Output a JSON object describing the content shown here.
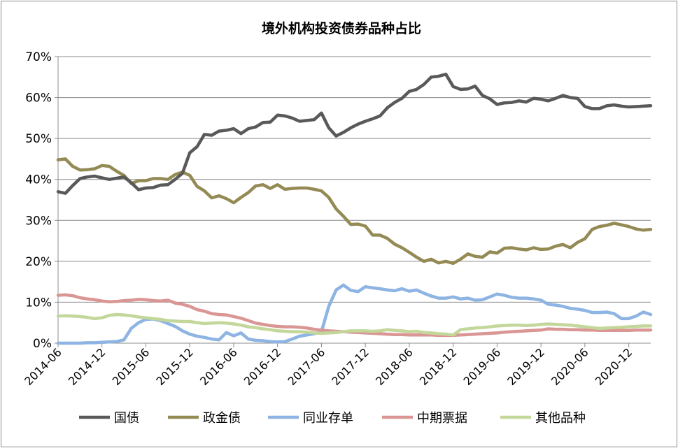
{
  "chart_data": {
    "type": "line",
    "title": "境外机构投资债券品种占比",
    "ylim": [
      0,
      70
    ],
    "yticks": [
      "0%",
      "10%",
      "20%",
      "30%",
      "40%",
      "50%",
      "60%",
      "70%"
    ],
    "xticks": [
      "2014-06",
      "2014-12",
      "2015-06",
      "2015-12",
      "2016-06",
      "2016-12",
      "2017-06",
      "2017-12",
      "2018-06",
      "2018-12",
      "2019-06",
      "2019-12",
      "2020-06",
      "2020-12"
    ],
    "x": [
      "2014-06",
      "2014-07",
      "2014-08",
      "2014-09",
      "2014-10",
      "2014-11",
      "2014-12",
      "2015-01",
      "2015-02",
      "2015-03",
      "2015-04",
      "2015-05",
      "2015-06",
      "2015-07",
      "2015-08",
      "2015-09",
      "2015-10",
      "2015-11",
      "2015-12",
      "2016-01",
      "2016-02",
      "2016-03",
      "2016-04",
      "2016-05",
      "2016-06",
      "2016-07",
      "2016-08",
      "2016-09",
      "2016-10",
      "2016-11",
      "2016-12",
      "2017-01",
      "2017-02",
      "2017-03",
      "2017-04",
      "2017-05",
      "2017-06",
      "2017-07",
      "2017-08",
      "2017-09",
      "2017-10",
      "2017-11",
      "2017-12",
      "2018-01",
      "2018-02",
      "2018-03",
      "2018-04",
      "2018-05",
      "2018-06",
      "2018-07",
      "2018-08",
      "2018-09",
      "2018-10",
      "2018-11",
      "2018-12",
      "2019-01",
      "2019-02",
      "2019-03",
      "2019-04",
      "2019-05",
      "2019-06",
      "2019-07",
      "2019-08",
      "2019-09",
      "2019-10",
      "2019-11",
      "2019-12",
      "2020-01",
      "2020-02",
      "2020-03",
      "2020-04",
      "2020-05",
      "2020-06",
      "2020-07",
      "2020-08",
      "2020-09",
      "2020-10",
      "2020-11",
      "2020-12",
      "2021-01",
      "2021-02",
      "2021-03"
    ],
    "legend_position": "bottom",
    "series": [
      {
        "name": "国债",
        "color": "#595959",
        "values": [
          37.0,
          36.6,
          38.5,
          40.2,
          40.6,
          40.8,
          40.4,
          40.0,
          40.3,
          40.6,
          39.2,
          37.5,
          37.9,
          38.0,
          38.6,
          38.7,
          40.0,
          41.5,
          46.5,
          48.0,
          51.0,
          50.8,
          51.8,
          52.0,
          52.4,
          51.2,
          52.4,
          52.8,
          53.9,
          54.0,
          55.7,
          55.5,
          55.0,
          54.2,
          54.4,
          54.6,
          56.2,
          52.6,
          50.6,
          51.5,
          52.6,
          53.5,
          54.2,
          54.8,
          55.5,
          57.5,
          58.8,
          59.8,
          61.5,
          62.0,
          63.2,
          65.0,
          65.2,
          65.7,
          62.7,
          62.0,
          62.1,
          62.8,
          60.5,
          59.7,
          58.3,
          58.7,
          58.8,
          59.2,
          58.9,
          59.8,
          59.6,
          59.2,
          59.8,
          60.5,
          60.0,
          59.8,
          57.8,
          57.3,
          57.3,
          58.0,
          58.2,
          57.9,
          57.7,
          57.8,
          57.9,
          58.0
        ]
      },
      {
        "name": "政金债",
        "color": "#948a54",
        "values": [
          44.8,
          45.0,
          43.2,
          42.3,
          42.4,
          42.6,
          43.4,
          43.2,
          42.0,
          41.0,
          39.0,
          39.7,
          39.7,
          40.2,
          40.2,
          40.0,
          41.2,
          41.8,
          41.0,
          38.3,
          37.2,
          35.5,
          36.0,
          35.3,
          34.3,
          35.6,
          36.8,
          38.4,
          38.7,
          37.8,
          38.7,
          37.6,
          37.8,
          37.9,
          37.9,
          37.6,
          37.2,
          35.6,
          32.8,
          31.0,
          29.0,
          29.1,
          28.6,
          26.4,
          26.4,
          25.6,
          24.2,
          23.3,
          22.2,
          21.0,
          20.0,
          20.5,
          19.6,
          20.0,
          19.5,
          20.5,
          21.8,
          21.2,
          21.0,
          22.3,
          22.0,
          23.2,
          23.3,
          23.0,
          22.8,
          23.3,
          22.9,
          23.0,
          23.7,
          24.1,
          23.3,
          24.6,
          25.5,
          27.8,
          28.5,
          28.8,
          29.3,
          28.9,
          28.5,
          27.9,
          27.6,
          27.8
        ]
      },
      {
        "name": "同业存单",
        "color": "#8db4e2",
        "values": [
          0,
          0,
          0,
          0,
          0.1,
          0.1,
          0.2,
          0.3,
          0.4,
          0.8,
          3.6,
          5.0,
          5.8,
          5.9,
          5.5,
          4.8,
          4.1,
          3.0,
          2.2,
          1.7,
          1.4,
          1.0,
          0.8,
          2.6,
          1.8,
          2.5,
          1.0,
          0.7,
          0.6,
          0.4,
          0.3,
          0.4,
          1.0,
          1.7,
          2.0,
          2.3,
          2.8,
          9.0,
          13.0,
          14.2,
          12.9,
          12.6,
          13.8,
          13.5,
          13.3,
          13.0,
          12.8,
          13.3,
          12.7,
          13.0,
          12.2,
          11.5,
          11.0,
          11.0,
          11.3,
          10.8,
          11.0,
          10.5,
          10.6,
          11.3,
          12.0,
          11.7,
          11.2,
          11.0,
          11.0,
          10.8,
          10.5,
          9.5,
          9.3,
          9.0,
          8.5,
          8.3,
          8.0,
          7.5,
          7.5,
          7.6,
          7.2,
          6.0,
          6.0,
          6.6,
          7.6,
          7.0
        ]
      },
      {
        "name": "中期票据",
        "color": "#da9694",
        "values": [
          11.7,
          11.8,
          11.6,
          11.1,
          10.8,
          10.6,
          10.3,
          10.1,
          10.2,
          10.4,
          10.5,
          10.7,
          10.6,
          10.4,
          10.3,
          10.5,
          9.8,
          9.5,
          9.0,
          8.2,
          7.8,
          7.2,
          7.0,
          6.9,
          6.5,
          6.1,
          5.5,
          4.9,
          4.6,
          4.3,
          4.1,
          4.0,
          4.0,
          3.9,
          3.7,
          3.4,
          3.2,
          3.0,
          2.9,
          2.8,
          2.7,
          2.6,
          2.5,
          2.4,
          2.3,
          2.2,
          2.1,
          2.1,
          2.0,
          2.0,
          2.0,
          2.0,
          1.9,
          1.9,
          1.9,
          2.0,
          2.1,
          2.2,
          2.3,
          2.4,
          2.5,
          2.7,
          2.8,
          2.9,
          3.0,
          3.1,
          3.2,
          3.5,
          3.4,
          3.4,
          3.3,
          3.3,
          3.2,
          3.2,
          3.1,
          3.1,
          3.1,
          3.1,
          3.1,
          3.2,
          3.2,
          3.2
        ]
      },
      {
        "name": "其他品种",
        "color": "#c4d79b",
        "values": [
          6.6,
          6.7,
          6.6,
          6.5,
          6.3,
          6.0,
          6.2,
          6.8,
          7.0,
          6.9,
          6.7,
          6.4,
          6.2,
          6.0,
          5.8,
          5.5,
          5.4,
          5.3,
          5.3,
          5.0,
          4.8,
          4.9,
          5.0,
          4.9,
          4.7,
          4.4,
          4.0,
          3.8,
          3.5,
          3.3,
          3.0,
          2.9,
          2.8,
          2.8,
          2.7,
          2.5,
          2.4,
          2.5,
          2.6,
          2.8,
          3.0,
          3.0,
          3.0,
          2.9,
          3.0,
          3.3,
          3.1,
          3.0,
          2.8,
          2.9,
          2.6,
          2.5,
          2.3,
          2.2,
          2.0,
          3.3,
          3.5,
          3.7,
          3.8,
          4.0,
          4.2,
          4.3,
          4.4,
          4.4,
          4.3,
          4.4,
          4.6,
          4.7,
          4.6,
          4.5,
          4.4,
          4.2,
          4.0,
          3.8,
          3.6,
          3.7,
          3.8,
          3.9,
          4.0,
          4.1,
          4.2,
          4.2
        ]
      }
    ]
  }
}
